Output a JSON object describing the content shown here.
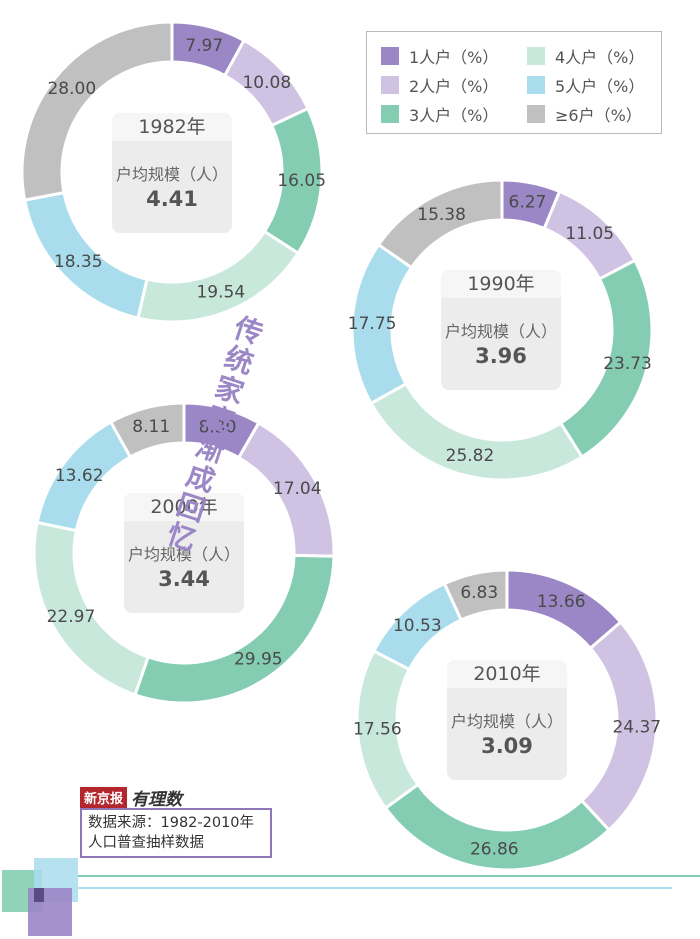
{
  "title": "传统家庭渐成回忆",
  "legend": [
    {
      "label": "1人户（%）",
      "color": "#9b86c6"
    },
    {
      "label": "2人户（%）",
      "color": "#cfc2e3"
    },
    {
      "label": "3人户（%）",
      "color": "#84cdb2"
    },
    {
      "label": "4人户（%）",
      "color": "#c8e8dc"
    },
    {
      "label": "5人户（%）",
      "color": "#a9dded"
    },
    {
      "label": "≥6户（%）",
      "color": "#c0c0c0"
    }
  ],
  "center_label": "户均规模（人）",
  "charts": [
    {
      "year": "1982年",
      "avg": "4.41"
    },
    {
      "year": "1990年",
      "avg": "3.96"
    },
    {
      "year": "2000年",
      "avg": "3.44"
    },
    {
      "year": "2010年",
      "avg": "3.09"
    }
  ],
  "source": {
    "brand": "新京报",
    "brand_script": "有理数",
    "line1": "数据来源：1982-2010年",
    "line2": "人口普查抽样数据"
  },
  "chart_data": [
    {
      "type": "pie",
      "title": "1982年",
      "categories": [
        "1人户",
        "2人户",
        "3人户",
        "4人户",
        "5人户",
        "≥6户"
      ],
      "values": [
        7.97,
        10.08,
        16.05,
        19.54,
        18.35,
        28.0
      ],
      "labels": [
        "7.97",
        "10.08",
        "16.05",
        "19.54",
        "18.35",
        "28.00"
      ],
      "center_value": "4.41"
    },
    {
      "type": "pie",
      "title": "1990年",
      "categories": [
        "1人户",
        "2人户",
        "3人户",
        "4人户",
        "5人户",
        "≥6户"
      ],
      "values": [
        6.27,
        11.05,
        23.73,
        25.82,
        17.75,
        15.38
      ],
      "labels": [
        "6.27",
        "11.05",
        "23.73",
        "25.82",
        "17.75",
        "15.38"
      ],
      "center_value": "3.96"
    },
    {
      "type": "pie",
      "title": "2000年",
      "categories": [
        "1人户",
        "2人户",
        "3人户",
        "4人户",
        "5人户",
        "≥6户"
      ],
      "values": [
        8.3,
        17.04,
        29.95,
        22.97,
        13.62,
        8.11
      ],
      "labels": [
        "8.30",
        "17.04",
        "29.95",
        "22.97",
        "13.62",
        "8.11"
      ],
      "center_value": "3.44"
    },
    {
      "type": "pie",
      "title": "2010年",
      "categories": [
        "1人户",
        "2人户",
        "3人户",
        "4人户",
        "5人户",
        "≥6户"
      ],
      "values": [
        13.66,
        24.37,
        26.86,
        17.56,
        10.53,
        6.83
      ],
      "labels": [
        "13.66",
        "24.37",
        "26.86",
        "17.56",
        "10.53",
        "6.83"
      ],
      "center_value": "3.09"
    }
  ]
}
